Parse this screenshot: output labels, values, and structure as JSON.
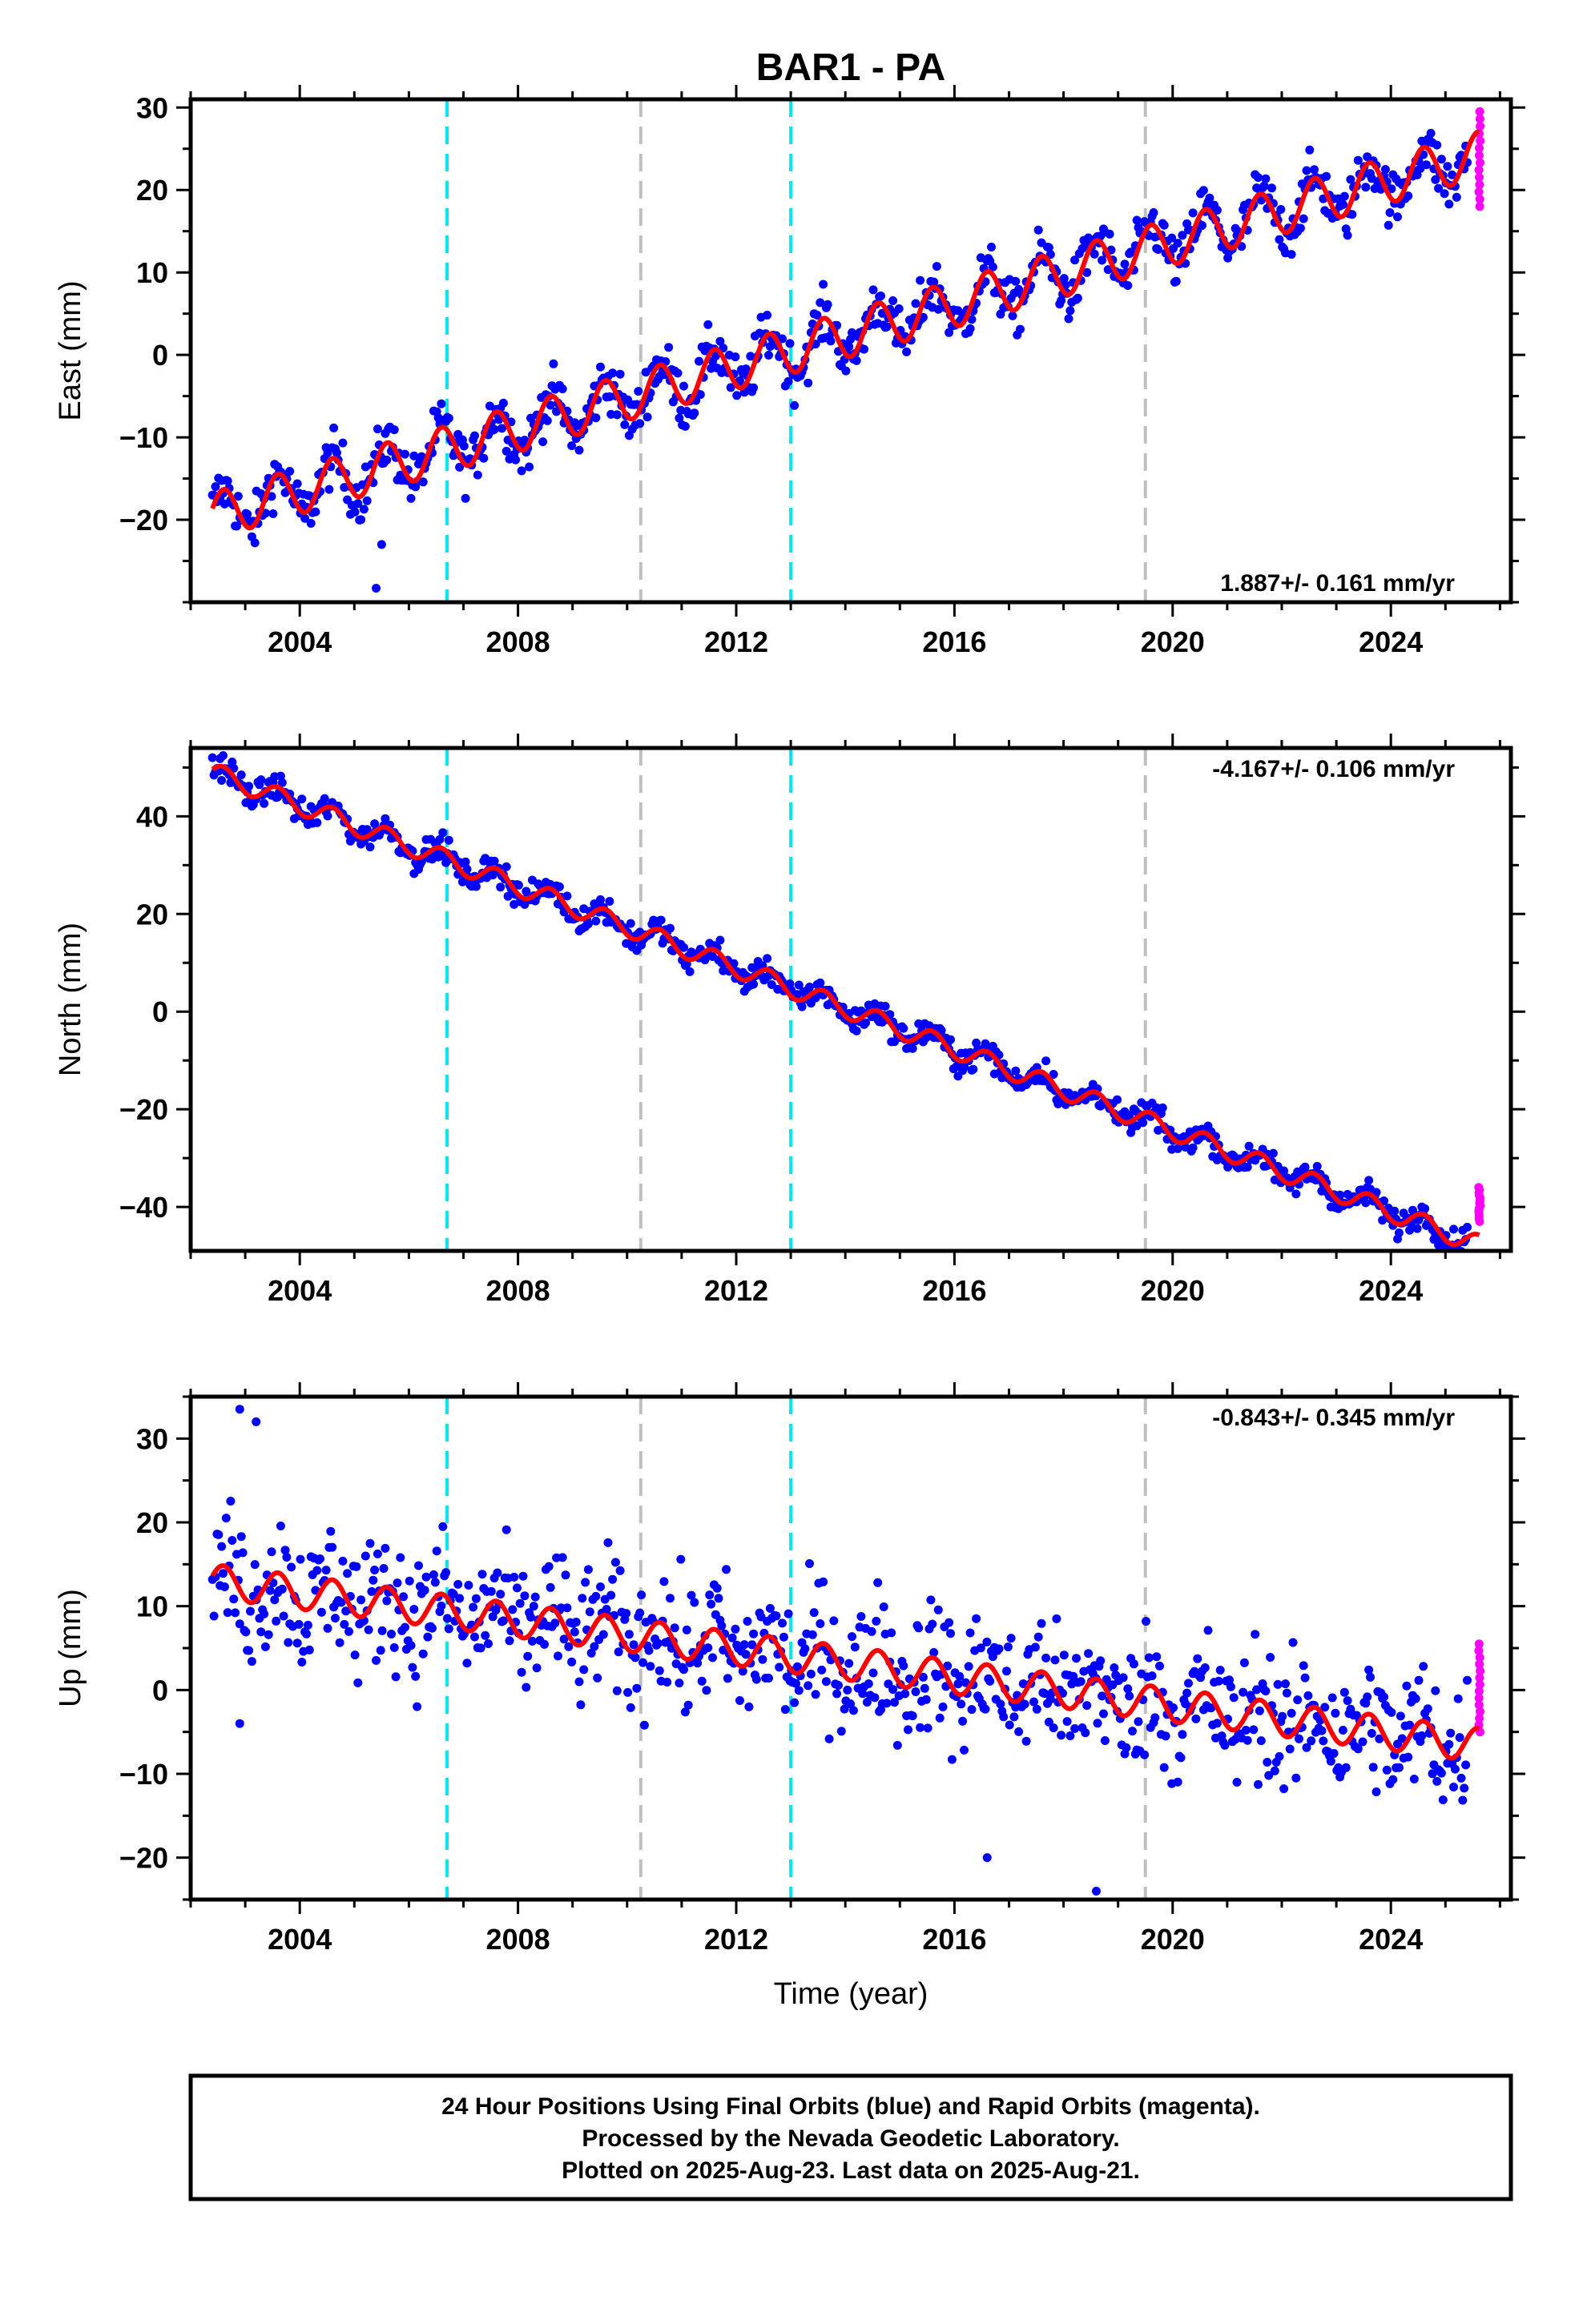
{
  "title": "BAR1 - PA",
  "xlabel": "Time (year)",
  "colors": {
    "final_orbits": "#0000ff",
    "rapid_orbits": "#ff00ff",
    "model": "#ff0000",
    "antenna_change": "#00e5ee",
    "equipment_change": "#c0c0c0"
  },
  "footer": {
    "line1": "24 Hour Positions Using Final Orbits (blue) and Rapid Orbits (magenta).",
    "line2": "Processed by the Nevada Geodetic Laboratory.",
    "line3": "Plotted on 2025-Aug-23. Last data on 2025-Aug-21."
  },
  "chart_data": [
    {
      "type": "scatter",
      "panel": "east",
      "ylabel": "East (mm)",
      "rate_label": "1.887+/- 0.161 mm/yr",
      "xlim": [
        2002.0,
        2026.2
      ],
      "ylim": [
        -30,
        31
      ],
      "xticks": [
        2004,
        2008,
        2012,
        2016,
        2020,
        2024
      ],
      "yticks": [
        -20,
        -10,
        0,
        10,
        20,
        30
      ],
      "start_year": 2002.4,
      "end_year": 2025.63,
      "rapid_start_year": 2025.42,
      "trend": {
        "intercept_year": 2002.4,
        "intercept_value": -19.5,
        "rate_mm_per_yr": 1.887
      },
      "seasonal_amplitude": 2.8,
      "scatter_spread": 1.6,
      "rapid_range": [
        18,
        29.5
      ],
      "outliers": [
        [
          2005.4,
          -28.3
        ],
        [
          2005.5,
          -23
        ]
      ],
      "vertical_lines": [
        {
          "year": 2006.7,
          "kind": "antenna_change"
        },
        {
          "year": 2010.25,
          "kind": "equipment_change"
        },
        {
          "year": 2013.0,
          "kind": "antenna_change"
        },
        {
          "year": 2019.5,
          "kind": "equipment_change"
        }
      ],
      "grid": false
    },
    {
      "type": "scatter",
      "panel": "north",
      "ylabel": "North (mm)",
      "rate_label": "-4.167+/- 0.106 mm/yr",
      "xlim": [
        2002.0,
        2026.2
      ],
      "ylim": [
        -49,
        54
      ],
      "xticks": [
        2004,
        2008,
        2012,
        2016,
        2020,
        2024
      ],
      "yticks": [
        -40,
        -20,
        0,
        20,
        40
      ],
      "start_year": 2002.4,
      "end_year": 2025.63,
      "rapid_start_year": 2025.42,
      "trend": {
        "intercept_year": 2002.4,
        "intercept_value": 49.0,
        "rate_mm_per_yr": -4.167
      },
      "seasonal_amplitude": 2.0,
      "scatter_spread": 1.3,
      "rapid_range": [
        -43,
        -36
      ],
      "outliers": [],
      "vertical_lines": [
        {
          "year": 2006.7,
          "kind": "antenna_change"
        },
        {
          "year": 2010.25,
          "kind": "equipment_change"
        },
        {
          "year": 2013.0,
          "kind": "antenna_change"
        },
        {
          "year": 2019.5,
          "kind": "equipment_change"
        }
      ],
      "grid": false
    },
    {
      "type": "scatter",
      "panel": "up",
      "ylabel": "Up (mm)",
      "rate_label": "-0.843+/- 0.345 mm/yr",
      "xlim": [
        2002.0,
        2026.2
      ],
      "ylim": [
        -25,
        35
      ],
      "xticks": [
        2004,
        2008,
        2012,
        2016,
        2020,
        2024
      ],
      "yticks": [
        -20,
        -10,
        0,
        10,
        20,
        30
      ],
      "start_year": 2002.4,
      "end_year": 2025.63,
      "rapid_start_year": 2025.42,
      "trend": {
        "intercept_year": 2002.4,
        "intercept_value": 13.0,
        "rate_mm_per_yr": -0.843
      },
      "seasonal_amplitude": 2.0,
      "scatter_spread": 4.0,
      "rapid_range": [
        -5,
        5.5
      ],
      "outliers": [
        [
          2002.9,
          33.5
        ],
        [
          2003.2,
          32
        ],
        [
          2018.6,
          -24
        ],
        [
          2016.6,
          -20
        ],
        [
          2002.9,
          -4
        ]
      ],
      "vertical_lines": [
        {
          "year": 2006.7,
          "kind": "antenna_change"
        },
        {
          "year": 2010.25,
          "kind": "equipment_change"
        },
        {
          "year": 2013.0,
          "kind": "antenna_change"
        },
        {
          "year": 2019.5,
          "kind": "equipment_change"
        }
      ],
      "grid": false
    }
  ]
}
